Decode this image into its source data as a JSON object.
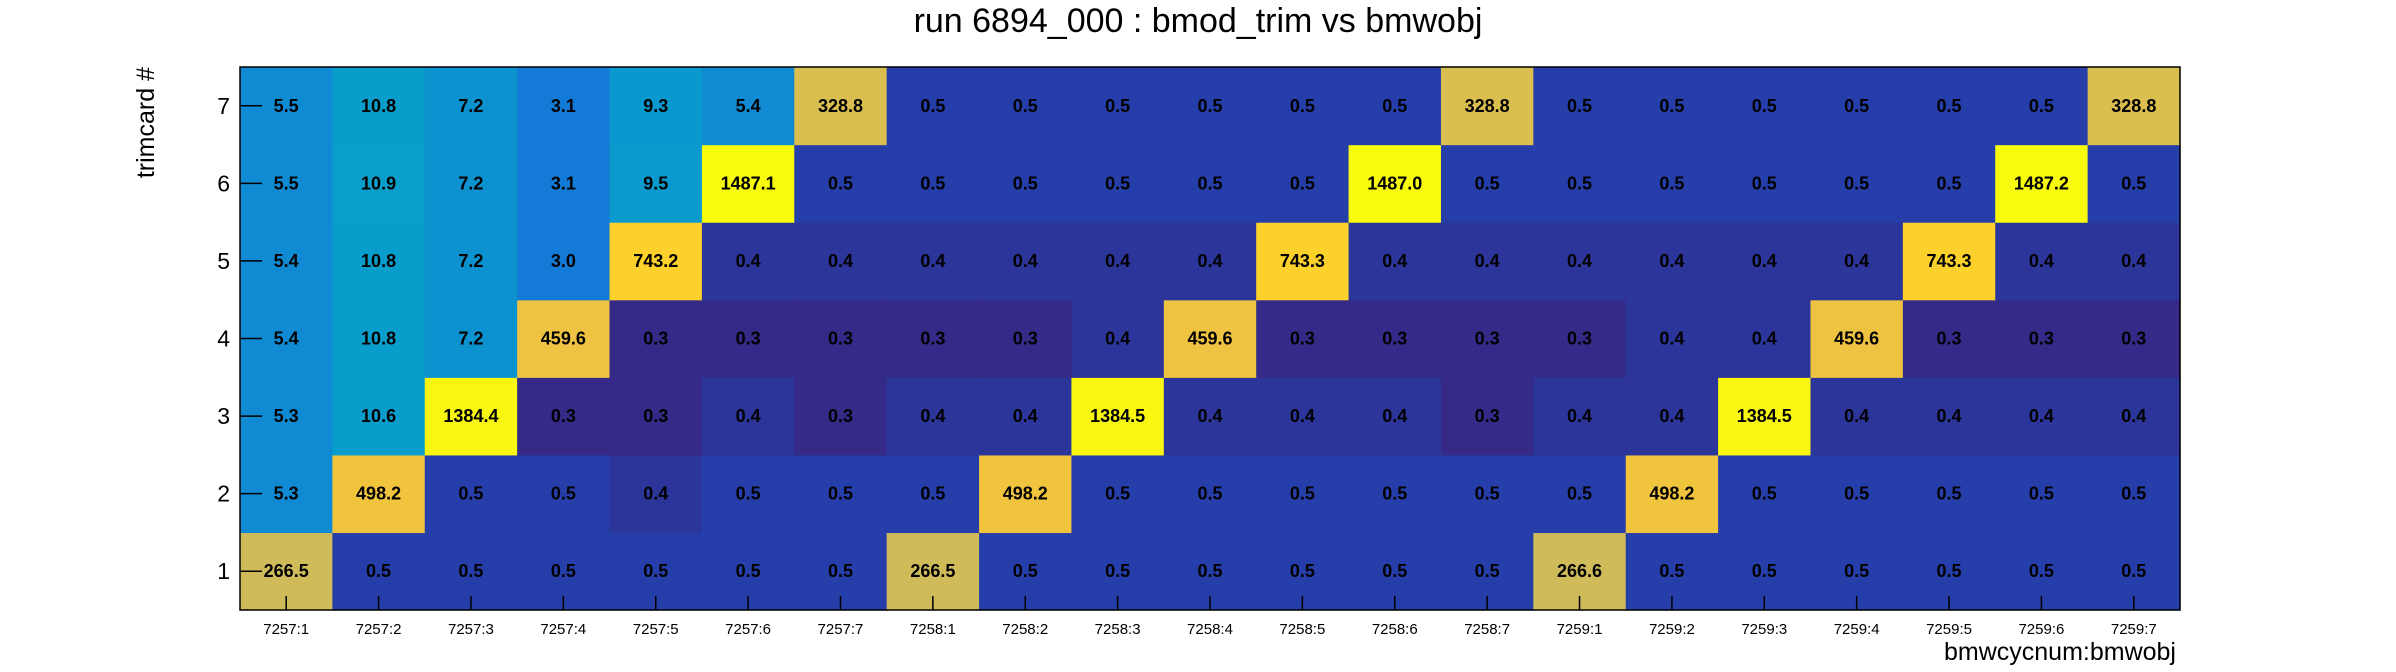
{
  "chart_data": {
    "type": "heatmap",
    "title": "run 6894_000 : bmod_trim vs bmwobj",
    "xlabel": "bmwcycnum:bmwobj",
    "ylabel": "trimcard #",
    "x_categories": [
      "7257:1",
      "7257:2",
      "7257:3",
      "7257:4",
      "7257:5",
      "7257:6",
      "7257:7",
      "7258:1",
      "7258:2",
      "7258:3",
      "7258:4",
      "7258:5",
      "7258:6",
      "7258:7",
      "7259:1",
      "7259:2",
      "7259:3",
      "7259:4",
      "7259:5",
      "7259:6",
      "7259:7"
    ],
    "y_categories": [
      "1",
      "2",
      "3",
      "4",
      "5",
      "6",
      "7"
    ],
    "values": [
      [
        266.5,
        0.5,
        0.5,
        0.5,
        0.5,
        0.5,
        0.5,
        266.5,
        0.5,
        0.5,
        0.5,
        0.5,
        0.5,
        0.5,
        266.6,
        0.5,
        0.5,
        0.5,
        0.5,
        0.5,
        0.5
      ],
      [
        5.3,
        498.2,
        0.5,
        0.5,
        0.4,
        0.5,
        0.5,
        0.5,
        498.2,
        0.5,
        0.5,
        0.5,
        0.5,
        0.5,
        0.5,
        498.2,
        0.5,
        0.5,
        0.5,
        0.5,
        0.5
      ],
      [
        5.3,
        10.6,
        1384.4,
        0.3,
        0.3,
        0.4,
        0.3,
        0.4,
        0.4,
        1384.5,
        0.4,
        0.4,
        0.4,
        0.3,
        0.4,
        0.4,
        1384.5,
        0.4,
        0.4,
        0.4,
        0.4
      ],
      [
        5.4,
        10.8,
        7.2,
        459.6,
        0.3,
        0.3,
        0.3,
        0.3,
        0.3,
        0.4,
        459.6,
        0.3,
        0.3,
        0.3,
        0.3,
        0.4,
        0.4,
        459.6,
        0.3,
        0.3,
        0.3
      ],
      [
        5.4,
        10.8,
        7.2,
        3.0,
        743.2,
        0.4,
        0.4,
        0.4,
        0.4,
        0.4,
        0.4,
        743.3,
        0.4,
        0.4,
        0.4,
        0.4,
        0.4,
        0.4,
        743.3,
        0.4,
        0.4
      ],
      [
        5.5,
        10.9,
        7.2,
        3.1,
        9.5,
        1487.1,
        0.5,
        0.5,
        0.5,
        0.5,
        0.5,
        0.5,
        1487.0,
        0.5,
        0.5,
        0.5,
        0.5,
        0.5,
        0.5,
        1487.2,
        0.5
      ],
      [
        5.5,
        10.8,
        7.2,
        3.1,
        9.3,
        5.4,
        328.8,
        0.5,
        0.5,
        0.5,
        0.5,
        0.5,
        0.5,
        328.8,
        0.5,
        0.5,
        0.5,
        0.5,
        0.5,
        0.5,
        328.8
      ]
    ],
    "colormap": "parula",
    "color_scale": "log",
    "legend": "none",
    "grid": false
  }
}
